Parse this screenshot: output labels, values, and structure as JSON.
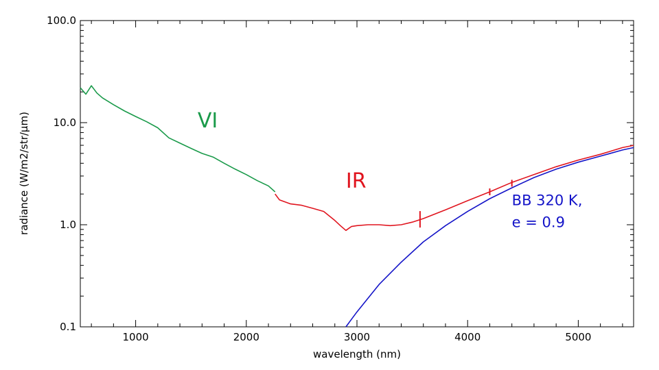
{
  "chart_data": {
    "type": "line",
    "xlabel": "wavelength (nm)",
    "ylabel": "radiance (W/m2/str/μm)",
    "xlim": [
      500,
      5500
    ],
    "ylim": [
      0.1,
      100
    ],
    "yscale": "log",
    "grid": false,
    "x_ticks": [
      {
        "value": 1000,
        "label": "1000"
      },
      {
        "value": 2000,
        "label": "2000"
      },
      {
        "value": 3000,
        "label": "3000"
      },
      {
        "value": 4000,
        "label": "4000"
      },
      {
        "value": 5000,
        "label": "5000"
      }
    ],
    "y_ticks": [
      {
        "value": 0.1,
        "label": "0.1"
      },
      {
        "value": 1.0,
        "label": "1.0"
      },
      {
        "value": 10.0,
        "label": "10.0"
      },
      {
        "value": 100.0,
        "label": "100.0"
      }
    ],
    "series": [
      {
        "name": "VI",
        "color": "#1a9a4a",
        "x": [
          500,
          550,
          600,
          650,
          700,
          800,
          900,
          1000,
          1100,
          1200,
          1300,
          1400,
          1500,
          1600,
          1700,
          1800,
          1900,
          2000,
          2100,
          2200,
          2260
        ],
        "y": [
          22,
          19,
          23,
          19.5,
          17.5,
          15,
          13,
          11.5,
          10.2,
          8.9,
          7.1,
          6.3,
          5.6,
          5.0,
          4.6,
          4.0,
          3.5,
          3.1,
          2.7,
          2.4,
          2.1
        ]
      },
      {
        "name": "IR",
        "color": "#e0141e",
        "x": [
          2260,
          2300,
          2400,
          2500,
          2600,
          2700,
          2800,
          2850,
          2900,
          2950,
          3000,
          3100,
          3200,
          3300,
          3400,
          3500,
          3600,
          3800,
          4000,
          4200,
          4400,
          4600,
          4800,
          5000,
          5200,
          5400,
          5500
        ],
        "y": [
          2.0,
          1.75,
          1.6,
          1.55,
          1.45,
          1.35,
          1.1,
          0.98,
          0.88,
          0.96,
          0.98,
          1.0,
          1.0,
          0.98,
          1.0,
          1.06,
          1.15,
          1.4,
          1.72,
          2.1,
          2.6,
          3.1,
          3.7,
          4.3,
          4.9,
          5.7,
          6.0
        ]
      },
      {
        "name": "BB 320 K, e = 0.9",
        "color": "#1414c8",
        "x": [
          2900,
          3000,
          3200,
          3400,
          3600,
          3800,
          4000,
          4200,
          4400,
          4600,
          4800,
          5000,
          5200,
          5400,
          5500
        ],
        "y": [
          0.1,
          0.14,
          0.26,
          0.43,
          0.68,
          0.98,
          1.35,
          1.8,
          2.3,
          2.9,
          3.5,
          4.1,
          4.7,
          5.4,
          5.7
        ]
      }
    ],
    "annotations": [
      {
        "text": "VI",
        "x": 1560,
        "y": 9.0,
        "color": "#1a9a4a"
      },
      {
        "text": "IR",
        "x": 2900,
        "y": 2.3,
        "color": "#e0141e"
      },
      {
        "text": "BB 320 K,",
        "x": 4400,
        "y": 1.55,
        "color": "#1414c8"
      },
      {
        "text": "e = 0.9",
        "x": 4400,
        "y": 0.95,
        "color": "#1414c8"
      }
    ],
    "ir_markers": [
      {
        "x": 3570,
        "y": 1.13
      },
      {
        "x": 4200,
        "y": 2.1
      },
      {
        "x": 4400,
        "y": 2.55
      }
    ]
  }
}
